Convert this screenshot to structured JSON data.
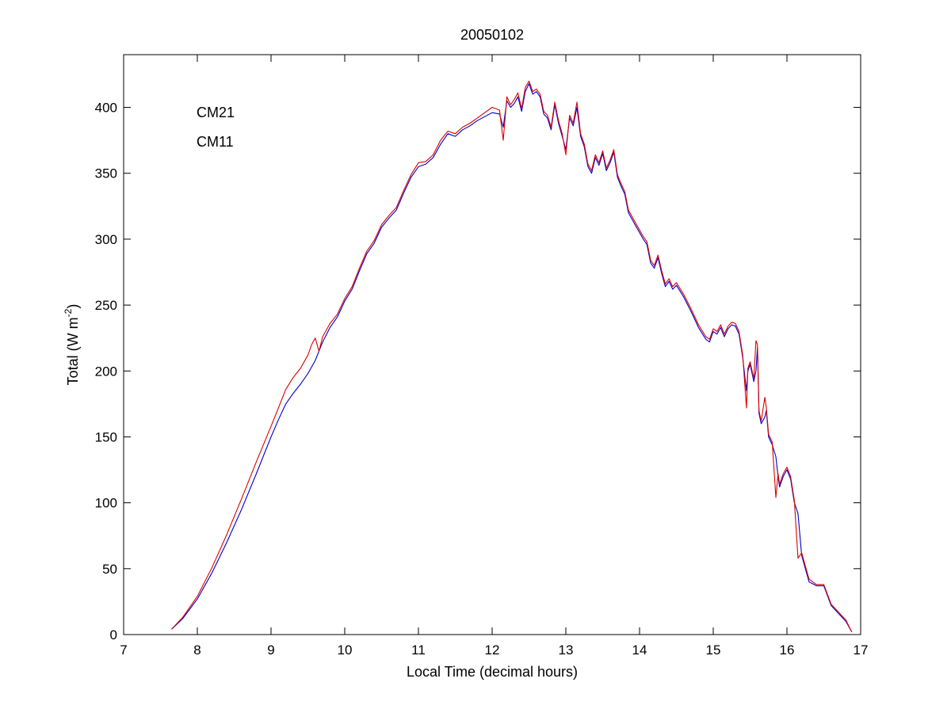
{
  "chart_data": {
    "type": "line",
    "title": "20050102",
    "xlabel": "Local Time (decimal hours)",
    "ylabel": {
      "base": "Total (W m",
      "sup": "-2",
      "close": ")"
    },
    "xlim": [
      7,
      17
    ],
    "ylim": [
      0,
      440
    ],
    "xticks": [
      7,
      8,
      9,
      10,
      11,
      12,
      13,
      14,
      15,
      16,
      17
    ],
    "yticks": [
      0,
      50,
      100,
      150,
      200,
      250,
      300,
      350,
      400
    ],
    "grid": false,
    "legend_position": "top-left",
    "series": [
      {
        "name": "CM21",
        "color": "#0000cc",
        "x": [
          7.65,
          7.8,
          8.0,
          8.2,
          8.4,
          8.6,
          8.8,
          9.0,
          9.1,
          9.2,
          9.3,
          9.4,
          9.5,
          9.6,
          9.7,
          9.8,
          9.9,
          10.0,
          10.1,
          10.2,
          10.3,
          10.4,
          10.5,
          10.6,
          10.7,
          10.8,
          10.9,
          11.0,
          11.1,
          11.2,
          11.3,
          11.4,
          11.5,
          11.6,
          11.7,
          11.8,
          11.9,
          12.0,
          12.1,
          12.15,
          12.2,
          12.25,
          12.3,
          12.35,
          12.4,
          12.45,
          12.5,
          12.55,
          12.6,
          12.65,
          12.7,
          12.75,
          12.8,
          12.85,
          12.9,
          12.95,
          13.0,
          13.05,
          13.1,
          13.15,
          13.2,
          13.25,
          13.3,
          13.35,
          13.4,
          13.45,
          13.5,
          13.55,
          13.6,
          13.65,
          13.7,
          13.75,
          13.8,
          13.85,
          13.9,
          13.95,
          14.0,
          14.05,
          14.1,
          14.15,
          14.2,
          14.25,
          14.3,
          14.35,
          14.4,
          14.45,
          14.5,
          14.6,
          14.7,
          14.8,
          14.9,
          14.95,
          15.0,
          15.05,
          15.1,
          15.15,
          15.2,
          15.25,
          15.3,
          15.35,
          15.4,
          15.45,
          15.47,
          15.5,
          15.55,
          15.58,
          15.6,
          15.62,
          15.65,
          15.7,
          15.72,
          15.75,
          15.8,
          15.85,
          15.88,
          15.9,
          15.95,
          16.0,
          16.05,
          16.1,
          16.15,
          16.2,
          16.3,
          16.4,
          16.5,
          16.6,
          16.7,
          16.8,
          16.88
        ],
        "y": [
          4,
          12,
          27,
          47,
          70,
          95,
          122,
          150,
          163,
          175,
          183,
          190,
          198,
          208,
          222,
          233,
          241,
          253,
          262,
          276,
          289,
          297,
          309,
          316,
          322,
          335,
          347,
          355,
          357,
          362,
          372,
          380,
          378,
          383,
          386,
          390,
          393,
          396,
          395,
          385,
          405,
          400,
          403,
          408,
          397,
          412,
          418,
          410,
          412,
          408,
          395,
          392,
          383,
          402,
          388,
          378,
          368,
          392,
          386,
          400,
          378,
          370,
          355,
          350,
          362,
          356,
          365,
          352,
          358,
          366,
          347,
          340,
          334,
          320,
          315,
          310,
          305,
          300,
          296,
          282,
          278,
          286,
          274,
          264,
          268,
          262,
          265,
          256,
          245,
          233,
          224,
          222,
          230,
          228,
          233,
          226,
          232,
          235,
          234,
          228,
          210,
          185,
          200,
          205,
          192,
          200,
          218,
          168,
          160,
          165,
          170,
          150,
          144,
          135,
          120,
          112,
          120,
          125,
          118,
          100,
          92,
          60,
          40,
          37,
          37,
          22,
          16,
          10,
          2
        ]
      },
      {
        "name": "CM11",
        "color": "#dd0000",
        "x": [
          7.65,
          7.8,
          8.0,
          8.2,
          8.4,
          8.6,
          8.8,
          9.0,
          9.1,
          9.2,
          9.3,
          9.4,
          9.5,
          9.55,
          9.6,
          9.65,
          9.7,
          9.8,
          9.9,
          10.0,
          10.1,
          10.2,
          10.3,
          10.4,
          10.5,
          10.6,
          10.7,
          10.8,
          10.9,
          11.0,
          11.1,
          11.2,
          11.3,
          11.4,
          11.5,
          11.6,
          11.7,
          11.8,
          11.9,
          12.0,
          12.1,
          12.15,
          12.2,
          12.25,
          12.3,
          12.35,
          12.4,
          12.45,
          12.5,
          12.55,
          12.6,
          12.65,
          12.7,
          12.75,
          12.8,
          12.85,
          12.9,
          12.95,
          13.0,
          13.05,
          13.1,
          13.15,
          13.2,
          13.25,
          13.3,
          13.35,
          13.4,
          13.45,
          13.5,
          13.55,
          13.6,
          13.65,
          13.7,
          13.75,
          13.8,
          13.85,
          13.9,
          13.95,
          14.0,
          14.05,
          14.1,
          14.15,
          14.2,
          14.25,
          14.3,
          14.35,
          14.4,
          14.45,
          14.5,
          14.6,
          14.7,
          14.8,
          14.9,
          14.95,
          15.0,
          15.05,
          15.1,
          15.15,
          15.2,
          15.25,
          15.3,
          15.35,
          15.4,
          15.45,
          15.47,
          15.5,
          15.55,
          15.58,
          15.6,
          15.62,
          15.65,
          15.7,
          15.72,
          15.75,
          15.8,
          15.85,
          15.88,
          15.9,
          15.95,
          16.0,
          16.05,
          16.1,
          16.15,
          16.2,
          16.3,
          16.4,
          16.5,
          16.6,
          16.7,
          16.8,
          16.88
        ],
        "y": [
          4,
          13,
          29,
          51,
          76,
          103,
          131,
          158,
          172,
          186,
          195,
          202,
          212,
          220,
          225,
          215,
          226,
          236,
          243,
          255,
          264,
          278,
          291,
          299,
          311,
          318,
          324,
          337,
          349,
          358,
          359,
          364,
          375,
          382,
          380,
          385,
          388,
          392,
          396,
          400,
          398,
          375,
          408,
          402,
          406,
          411,
          399,
          415,
          420,
          412,
          414,
          410,
          397,
          394,
          385,
          404,
          390,
          380,
          364,
          394,
          388,
          404,
          380,
          372,
          357,
          352,
          364,
          358,
          367,
          354,
          360,
          368,
          349,
          342,
          336,
          322,
          317,
          312,
          307,
          302,
          298,
          284,
          280,
          288,
          276,
          266,
          270,
          264,
          267,
          258,
          247,
          235,
          226,
          224,
          232,
          230,
          235,
          228,
          234,
          237,
          236,
          230,
          212,
          172,
          202,
          207,
          194,
          223,
          220,
          170,
          162,
          180,
          172,
          152,
          146,
          104,
          122,
          114,
          122,
          127,
          120,
          102,
          58,
          62,
          42,
          38,
          38,
          23,
          17,
          11,
          2
        ]
      }
    ]
  }
}
